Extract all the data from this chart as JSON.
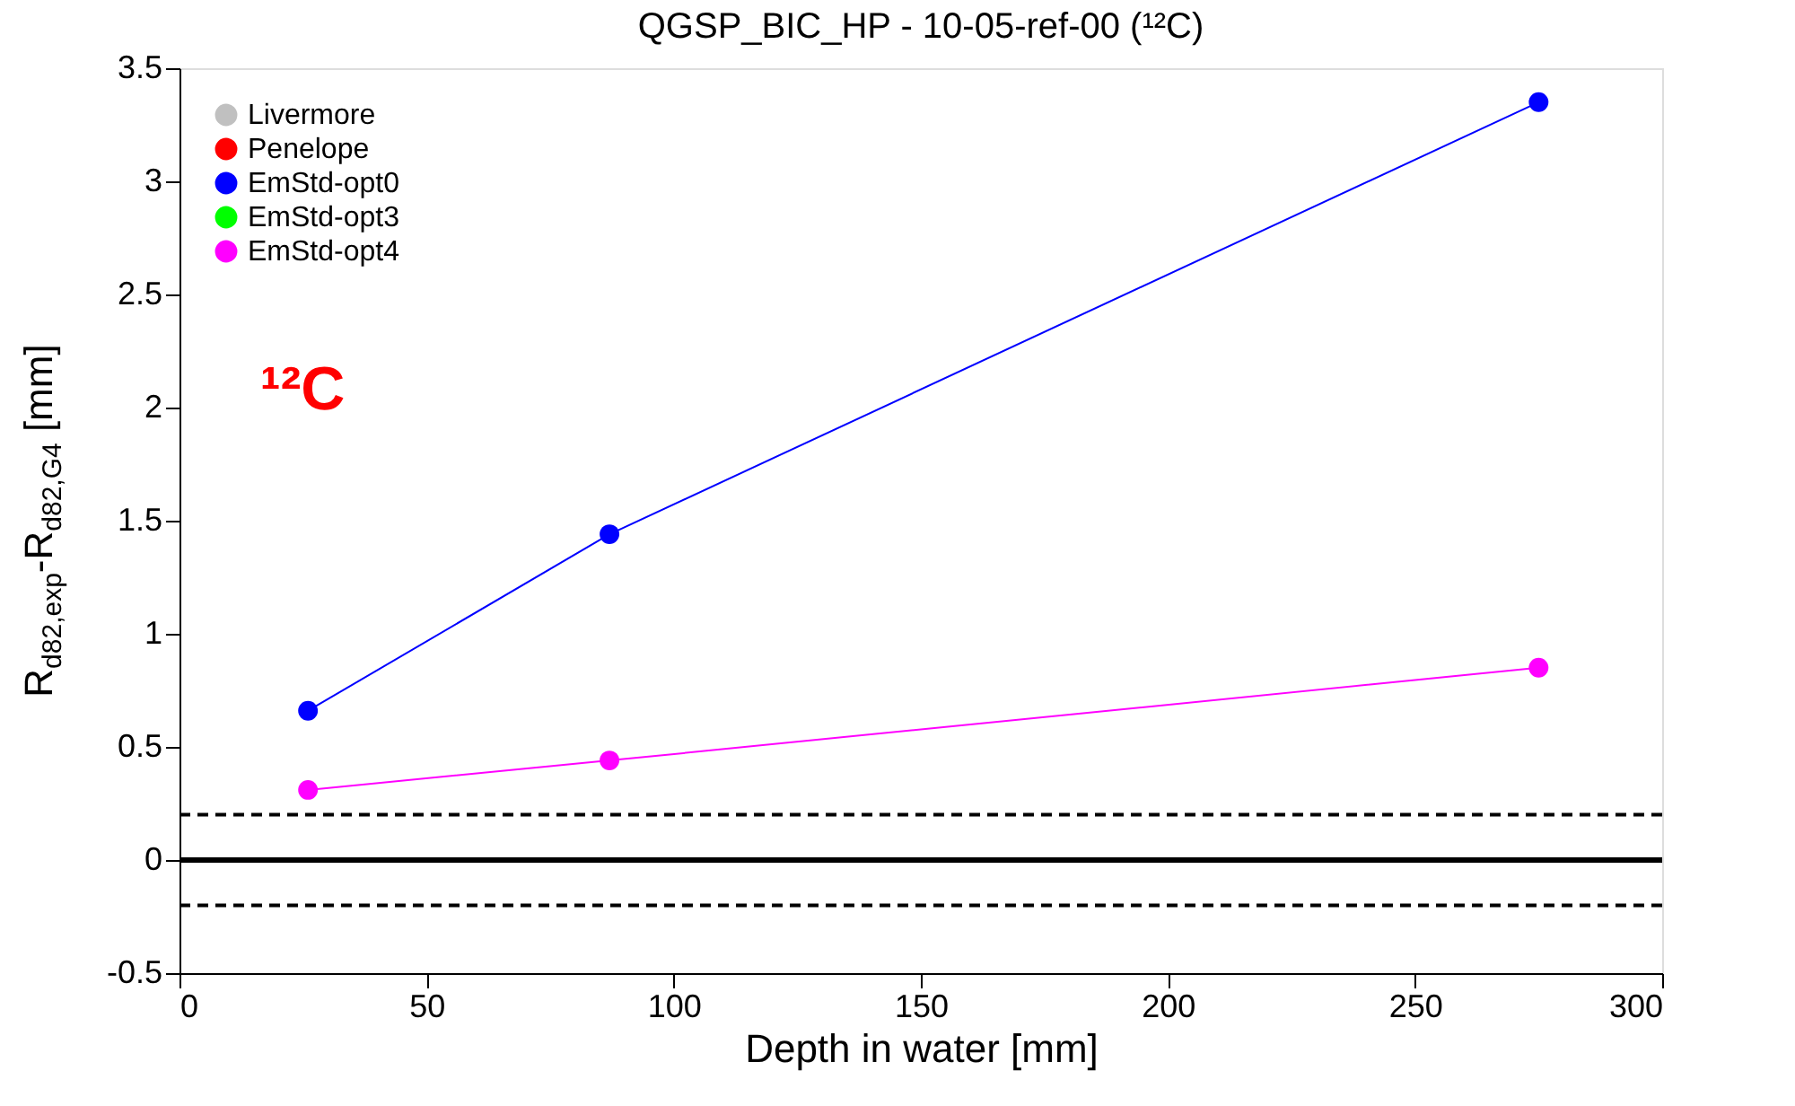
{
  "chart_data": {
    "type": "line",
    "title": "QGSP_BIC_HP - 10-05-ref-00 (¹²C)",
    "xlabel": "Depth in water [mm]",
    "ylabel": "R$_{d82,exp}$-R$_{d82,G4}$ [mm]",
    "x": [
      26,
      87,
      275
    ],
    "series": [
      {
        "name": "Livermore",
        "color": "#c0c0c0",
        "values": [
          null,
          null,
          null
        ]
      },
      {
        "name": "Penelope",
        "color": "#ff0000",
        "values": [
          null,
          null,
          null
        ]
      },
      {
        "name": "EmStd-opt0",
        "color": "#0000ff",
        "values": [
          0.66,
          1.44,
          3.35
        ],
        "errors": [
          0.04,
          0.04,
          0.04
        ]
      },
      {
        "name": "EmStd-opt3",
        "color": "#00ff00",
        "values": [
          null,
          null,
          null
        ]
      },
      {
        "name": "EmStd-opt4",
        "color": "#ff00ff",
        "values": [
          0.31,
          0.44,
          0.85
        ],
        "errors": [
          0.04,
          0.04,
          0.04
        ]
      }
    ],
    "xlim": [
      0,
      300
    ],
    "xticks": [
      0,
      50,
      100,
      150,
      200,
      250,
      300
    ],
    "ylim": [
      -0.5,
      3.5
    ],
    "yticks": [
      -0.5,
      0,
      0.5,
      1,
      1.5,
      2,
      2.5,
      3,
      3.5
    ],
    "ref_lines": [
      {
        "axis": "y",
        "value": 0,
        "color": "#000000",
        "line_style": "solid"
      },
      {
        "axis": "y",
        "value": 0.2,
        "color": "#000000",
        "line_style": "dashed"
      },
      {
        "axis": "y",
        "value": -0.2,
        "color": "#000000",
        "line_style": "dashed"
      }
    ],
    "annotations": [
      "¹²C"
    ],
    "marker": "circle",
    "line_style": "solid",
    "grid": false,
    "legend": "top left"
  }
}
